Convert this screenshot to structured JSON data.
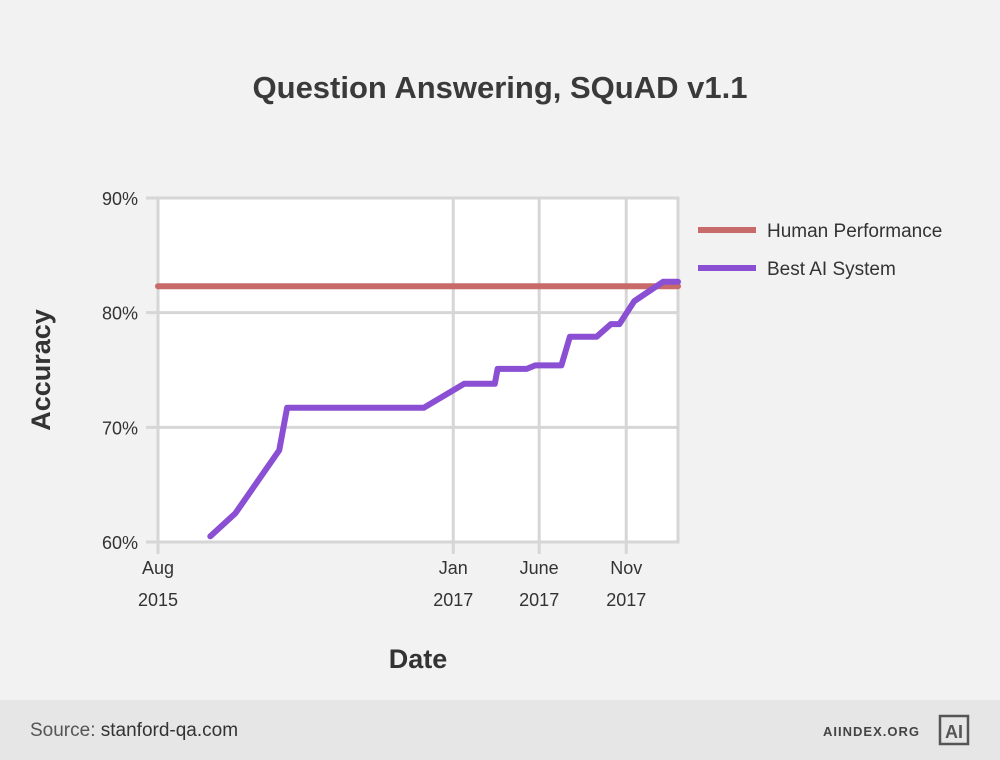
{
  "title": "Question Answering, SQuAD v1.1",
  "footer": {
    "source_label": "Source:",
    "source_value": "stanford-qa.com",
    "brand": "AIINDEX.ORG",
    "logo_text": "AI"
  },
  "colors": {
    "human": "#c86a6a",
    "ai": "#8a4fd3",
    "grid": "#d6d6d6",
    "plot_bg": "#ffffff"
  },
  "chart_data": {
    "type": "line",
    "title": "Question Answering, SQuAD v1.1",
    "xlabel": "Date",
    "ylabel": "Accuracy",
    "xlim": [
      "2015-08-01",
      "2018-01-31"
    ],
    "ylim": [
      60,
      90
    ],
    "y_ticks": [
      "60%",
      "70%",
      "80%",
      "90%"
    ],
    "x_ticks": [
      {
        "date": "2015-08-01",
        "label": [
          "Aug",
          "2015"
        ]
      },
      {
        "date": "2017-01-01",
        "label": [
          "Jan",
          "2017"
        ]
      },
      {
        "date": "2017-06-01",
        "label": [
          "June",
          "2017"
        ]
      },
      {
        "date": "2017-11-01",
        "label": [
          "Nov",
          "2017"
        ]
      }
    ],
    "grid": true,
    "legend_position": "right",
    "series": [
      {
        "name": "Human Performance",
        "color": "#c86a6a",
        "points": [
          [
            "2015-08-01",
            82.3
          ],
          [
            "2018-01-31",
            82.3
          ]
        ]
      },
      {
        "name": "Best AI System",
        "color": "#8a4fd3",
        "points": [
          [
            "2015-11-01",
            60.5
          ],
          [
            "2015-12-15",
            62.5
          ],
          [
            "2016-03-01",
            68.0
          ],
          [
            "2016-03-15",
            71.7
          ],
          [
            "2016-07-01",
            71.7
          ],
          [
            "2016-07-20",
            71.7
          ],
          [
            "2016-11-10",
            71.7
          ],
          [
            "2017-01-20",
            73.8
          ],
          [
            "2017-03-15",
            73.8
          ],
          [
            "2017-03-20",
            75.1
          ],
          [
            "2017-05-10",
            75.1
          ],
          [
            "2017-05-25",
            75.4
          ],
          [
            "2017-07-10",
            75.4
          ],
          [
            "2017-07-25",
            77.9
          ],
          [
            "2017-09-10",
            77.9
          ],
          [
            "2017-10-05",
            79.0
          ],
          [
            "2017-10-20",
            79.0
          ],
          [
            "2017-11-15",
            81.0
          ],
          [
            "2018-01-05",
            82.7
          ],
          [
            "2018-01-31",
            82.7
          ]
        ]
      }
    ]
  }
}
